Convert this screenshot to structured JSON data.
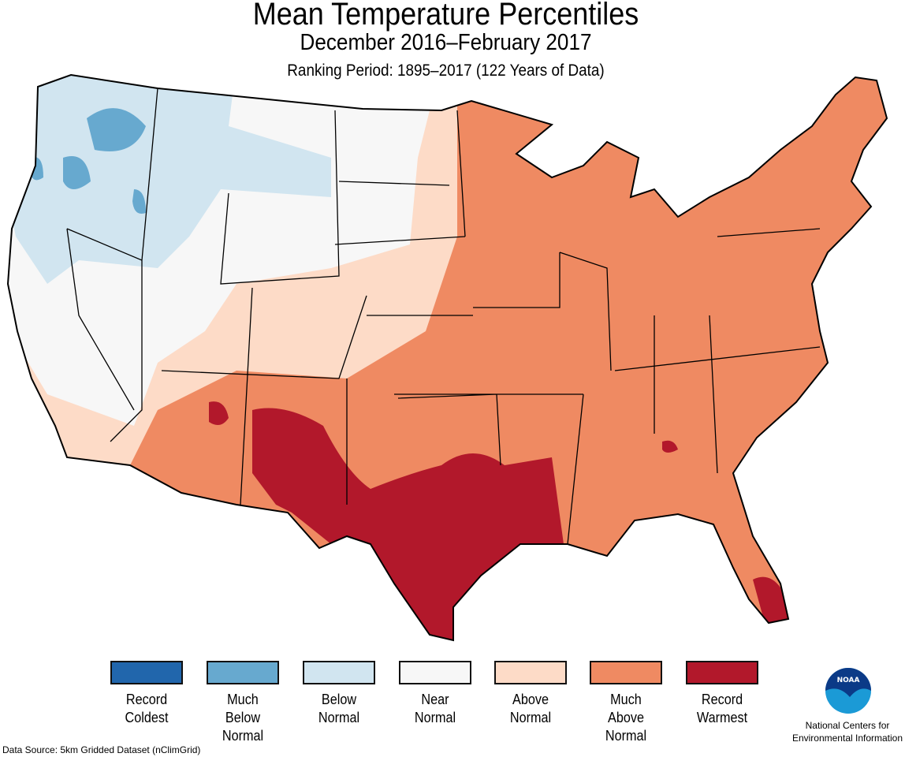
{
  "header": {
    "title": "Mean Temperature Percentiles",
    "subtitle": "December 2016–February 2017",
    "ranking_period": "Ranking Period: 1895–2017 (122 Years of Data)"
  },
  "legend": [
    {
      "label_lines": [
        "Record",
        "Coldest"
      ],
      "color": "#2166ac"
    },
    {
      "label_lines": [
        "Much",
        "Below",
        "Normal"
      ],
      "color": "#67a9cf"
    },
    {
      "label_lines": [
        "Below",
        "Normal"
      ],
      "color": "#d1e5f0"
    },
    {
      "label_lines": [
        "Near",
        "Normal"
      ],
      "color": "#f7f7f7"
    },
    {
      "label_lines": [
        "Above",
        "Normal"
      ],
      "color": "#fddbc7"
    },
    {
      "label_lines": [
        "Much",
        "Above",
        "Normal"
      ],
      "color": "#ef8a62"
    },
    {
      "label_lines": [
        "Record",
        "Warmest"
      ],
      "color": "#b2182b"
    }
  ],
  "footer": {
    "data_source": "Data Source: 5km Gridded Dataset (nClimGrid)",
    "agency_line1": "National Centers for",
    "agency_line2": "Environmental Information",
    "logo_text": "NOAA"
  }
}
